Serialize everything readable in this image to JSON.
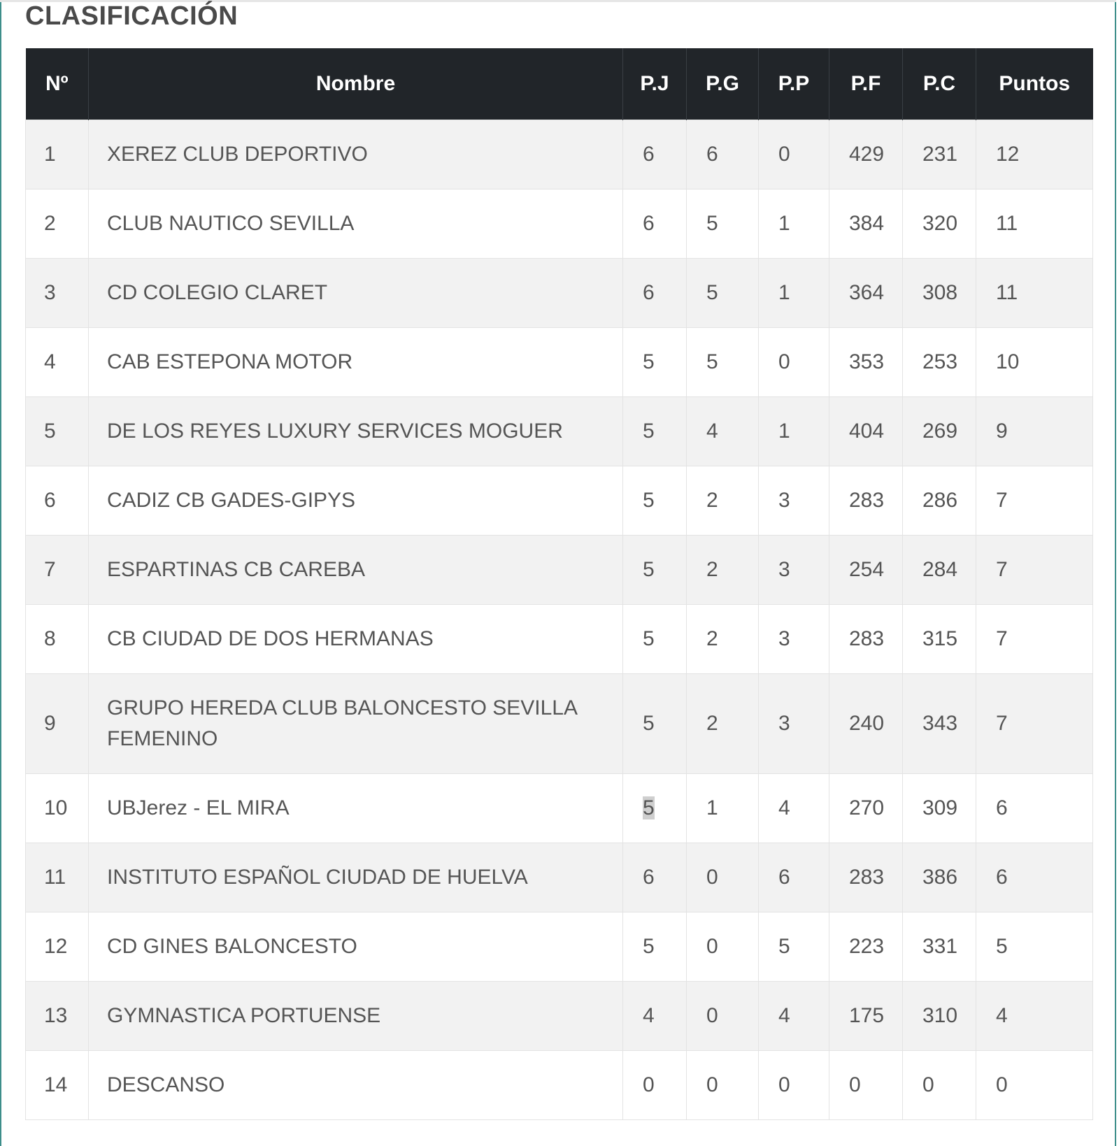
{
  "title": "CLASIFICACIÓN",
  "columns": [
    "Nº",
    "Nombre",
    "P.J",
    "P.G",
    "P.P",
    "P.F",
    "P.C",
    "Puntos"
  ],
  "rows": [
    {
      "pos": "1",
      "name": "XEREZ CLUB DEPORTIVO",
      "pj": "6",
      "pg": "6",
      "pp": "0",
      "pf": "429",
      "pc": "231",
      "pts": "12"
    },
    {
      "pos": "2",
      "name": "CLUB NAUTICO SEVILLA",
      "pj": "6",
      "pg": "5",
      "pp": "1",
      "pf": "384",
      "pc": "320",
      "pts": "11"
    },
    {
      "pos": "3",
      "name": "CD COLEGIO CLARET",
      "pj": "6",
      "pg": "5",
      "pp": "1",
      "pf": "364",
      "pc": "308",
      "pts": "11"
    },
    {
      "pos": "4",
      "name": "CAB ESTEPONA MOTOR",
      "pj": "5",
      "pg": "5",
      "pp": "0",
      "pf": "353",
      "pc": "253",
      "pts": "10"
    },
    {
      "pos": "5",
      "name": "DE LOS REYES LUXURY SERVICES MOGUER",
      "pj": "5",
      "pg": "4",
      "pp": "1",
      "pf": "404",
      "pc": "269",
      "pts": "9"
    },
    {
      "pos": "6",
      "name": "CADIZ CB GADES-GIPYS",
      "pj": "5",
      "pg": "2",
      "pp": "3",
      "pf": "283",
      "pc": "286",
      "pts": "7"
    },
    {
      "pos": "7",
      "name": "ESPARTINAS CB CAREBA",
      "pj": "5",
      "pg": "2",
      "pp": "3",
      "pf": "254",
      "pc": "284",
      "pts": "7"
    },
    {
      "pos": "8",
      "name": "CB CIUDAD DE DOS HERMANAS",
      "pj": "5",
      "pg": "2",
      "pp": "3",
      "pf": "283",
      "pc": "315",
      "pts": "7"
    },
    {
      "pos": "9",
      "name": "GRUPO HEREDA CLUB BALONCESTO SEVILLA FEMENINO",
      "pj": "5",
      "pg": "2",
      "pp": "3",
      "pf": "240",
      "pc": "343",
      "pts": "7"
    },
    {
      "pos": "10",
      "name": "UBJerez - EL MIRA",
      "pj": "5",
      "pg": "1",
      "pp": "4",
      "pf": "270",
      "pc": "309",
      "pts": "6"
    },
    {
      "pos": "11",
      "name": "INSTITUTO ESPAÑOL CIUDAD DE HUELVA",
      "pj": "6",
      "pg": "0",
      "pp": "6",
      "pf": "283",
      "pc": "386",
      "pts": "6"
    },
    {
      "pos": "12",
      "name": "CD GINES BALONCESTO",
      "pj": "5",
      "pg": "0",
      "pp": "5",
      "pf": "223",
      "pc": "331",
      "pts": "5"
    },
    {
      "pos": "13",
      "name": "GYMNASTICA PORTUENSE",
      "pj": "4",
      "pg": "0",
      "pp": "4",
      "pf": "175",
      "pc": "310",
      "pts": "4"
    },
    {
      "pos": "14",
      "name": "DESCANSO",
      "pj": "0",
      "pg": "0",
      "pp": "0",
      "pf": "0",
      "pc": "0",
      "pts": "0"
    }
  ],
  "colors": {
    "header_bg": "#212529",
    "header_text": "#ffffff",
    "row_odd": "#f2f2f2",
    "row_even": "#ffffff",
    "text": "#555555",
    "frame": "#3d8e8a"
  }
}
